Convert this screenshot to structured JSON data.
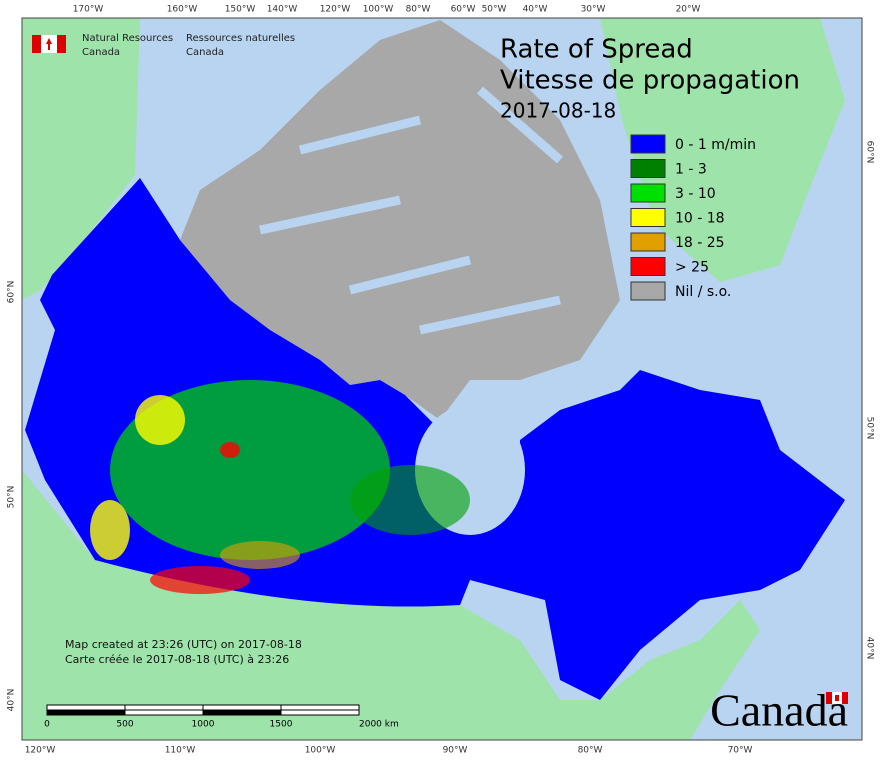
{
  "header": {
    "agency_en": [
      "Natural Resources",
      "Canada"
    ],
    "agency_fr": [
      "Ressources naturelles",
      "Canada"
    ]
  },
  "title": {
    "line1": "Rate of Spread",
    "line2": "Vitesse de propagation",
    "date": "2017-08-18"
  },
  "legend": [
    {
      "label": "0 - 1 m/min",
      "color": "#0000ff"
    },
    {
      "label": "1 - 3",
      "color": "#008000"
    },
    {
      "label": "3 - 10",
      "color": "#00e000"
    },
    {
      "label": "10 - 18",
      "color": "#ffff00"
    },
    {
      "label": "18 - 25",
      "color": "#e0a000"
    },
    {
      "label": "> 25",
      "color": "#ff0000"
    },
    {
      "label": "Nil / s.o.",
      "color": "#a8a8a8"
    }
  ],
  "graticule": {
    "top": [
      "170°W",
      "160°W",
      "150°W",
      "140°W",
      "120°W",
      "100°W",
      "80°W",
      "60°W",
      "50°W",
      "40°W",
      "30°W",
      "20°W"
    ],
    "bottom": [
      "120°W",
      "110°W",
      "100°W",
      "90°W",
      "80°W",
      "70°W"
    ],
    "left": [
      "60°N",
      "50°N",
      "40°N"
    ],
    "right": [
      "60°N",
      "50°N",
      "40°N"
    ]
  },
  "notes": [
    "Map created at 23:26 (UTC) on 2017-08-18",
    "Carte créée le 2017-08-18 (UTC) à 23:26"
  ],
  "scale_bar": {
    "labels": [
      "0",
      "500",
      "1000",
      "1500",
      "2000 km"
    ]
  },
  "wordmark": "Canada"
}
